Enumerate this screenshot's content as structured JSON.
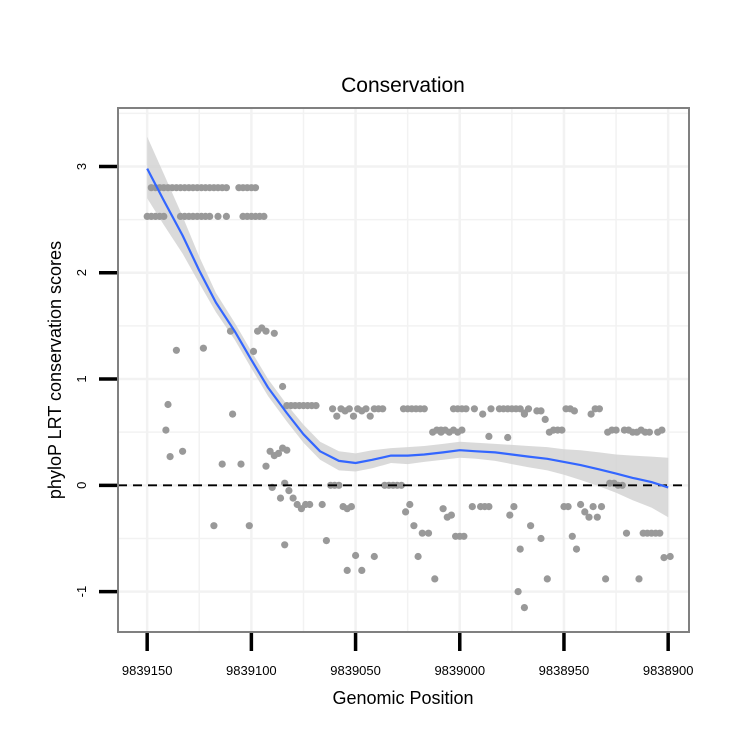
{
  "chart_data": {
    "type": "scatter",
    "title": "Conservation",
    "xlabel": "Genomic Position",
    "ylabel": "phyloP LRT conservation scores",
    "x_reversed": true,
    "xlim": [
      9839164,
      9838890
    ],
    "ylim": [
      -1.38,
      3.55
    ],
    "xticks": [
      9839150,
      9839100,
      9839050,
      9839000,
      9838950,
      9838900
    ],
    "xtick_labels": [
      "9839150",
      "9839100",
      "9839050",
      "9839000",
      "9838950",
      "9838900"
    ],
    "yticks": [
      -1,
      0,
      1,
      2,
      3
    ],
    "ytick_labels": [
      "-1",
      "0",
      "1",
      "2",
      "3"
    ],
    "grid": true,
    "reference_line": {
      "y": 0,
      "style": "dashed"
    },
    "colors": {
      "points": "#999999",
      "smooth_line": "#3366ff",
      "confidence_band": "#d4d4d4",
      "grid": "#f2f2f2",
      "border": "#808080",
      "reference_line": "#000000"
    },
    "points": [
      [
        9839148,
        2.8
      ],
      [
        9839146,
        2.8
      ],
      [
        9839144,
        2.8
      ],
      [
        9839142,
        2.8
      ],
      [
        9839140,
        2.8
      ],
      [
        9839138,
        2.8
      ],
      [
        9839136,
        2.8
      ],
      [
        9839134,
        2.8
      ],
      [
        9839132,
        2.8
      ],
      [
        9839130,
        2.8
      ],
      [
        9839128,
        2.8
      ],
      [
        9839126,
        2.8
      ],
      [
        9839124,
        2.8
      ],
      [
        9839122,
        2.8
      ],
      [
        9839120,
        2.8
      ],
      [
        9839118,
        2.8
      ],
      [
        9839116,
        2.8
      ],
      [
        9839114,
        2.8
      ],
      [
        9839112,
        2.8
      ],
      [
        9839106,
        2.8
      ],
      [
        9839104,
        2.8
      ],
      [
        9839102,
        2.8
      ],
      [
        9839100,
        2.8
      ],
      [
        9839098,
        2.8
      ],
      [
        9839150,
        2.53
      ],
      [
        9839148,
        2.53
      ],
      [
        9839146,
        2.53
      ],
      [
        9839144,
        2.53
      ],
      [
        9839142,
        2.53
      ],
      [
        9839134,
        2.53
      ],
      [
        9839132,
        2.53
      ],
      [
        9839130,
        2.53
      ],
      [
        9839128,
        2.53
      ],
      [
        9839126,
        2.53
      ],
      [
        9839124,
        2.53
      ],
      [
        9839122,
        2.53
      ],
      [
        9839120,
        2.53
      ],
      [
        9839116,
        2.53
      ],
      [
        9839112,
        2.53
      ],
      [
        9839104,
        2.53
      ],
      [
        9839102,
        2.53
      ],
      [
        9839100,
        2.53
      ],
      [
        9839098,
        2.53
      ],
      [
        9839096,
        2.53
      ],
      [
        9839094,
        2.53
      ],
      [
        9839136,
        1.27
      ],
      [
        9839123,
        1.29
      ],
      [
        9839110,
        1.45
      ],
      [
        9839099,
        1.26
      ],
      [
        9839097,
        1.45
      ],
      [
        9839095,
        1.48
      ],
      [
        9839093,
        1.45
      ],
      [
        9839089,
        1.43
      ],
      [
        9839140,
        0.76
      ],
      [
        9839141,
        0.52
      ],
      [
        9839139,
        0.27
      ],
      [
        9839133,
        0.32
      ],
      [
        9839109,
        0.67
      ],
      [
        9839114,
        0.2
      ],
      [
        9839085,
        0.93
      ],
      [
        9839083,
        0.75
      ],
      [
        9839081,
        0.75
      ],
      [
        9839079,
        0.75
      ],
      [
        9839077,
        0.75
      ],
      [
        9839075,
        0.75
      ],
      [
        9839073,
        0.75
      ],
      [
        9839071,
        0.75
      ],
      [
        9839069,
        0.75
      ],
      [
        9839061,
        0.72
      ],
      [
        9839059,
        0.65
      ],
      [
        9839057,
        0.72
      ],
      [
        9839055,
        0.7
      ],
      [
        9839053,
        0.72
      ],
      [
        9839051,
        0.65
      ],
      [
        9839049,
        0.72
      ],
      [
        9839047,
        0.7
      ],
      [
        9839045,
        0.72
      ],
      [
        9839043,
        0.65
      ],
      [
        9839041,
        0.72
      ],
      [
        9839039,
        0.72
      ],
      [
        9839037,
        0.72
      ],
      [
        9839027,
        0.72
      ],
      [
        9839025,
        0.72
      ],
      [
        9839023,
        0.72
      ],
      [
        9839021,
        0.72
      ],
      [
        9839019,
        0.72
      ],
      [
        9839017,
        0.72
      ],
      [
        9839013,
        0.5
      ],
      [
        9839011,
        0.52
      ],
      [
        9839009,
        0.52
      ],
      [
        9839007,
        0.52
      ],
      [
        9839005,
        0.5
      ],
      [
        9839003,
        0.52
      ],
      [
        9839001,
        0.5
      ],
      [
        9838999,
        0.52
      ],
      [
        9839003,
        0.72
      ],
      [
        9839001,
        0.72
      ],
      [
        9838999,
        0.72
      ],
      [
        9838997,
        0.72
      ],
      [
        9838993,
        0.72
      ],
      [
        9838989,
        0.67
      ],
      [
        9838985,
        0.72
      ],
      [
        9838981,
        0.72
      ],
      [
        9838979,
        0.72
      ],
      [
        9838977,
        0.72
      ],
      [
        9838975,
        0.72
      ],
      [
        9838973,
        0.72
      ],
      [
        9838971,
        0.72
      ],
      [
        9838969,
        0.67
      ],
      [
        9838967,
        0.72
      ],
      [
        9838963,
        0.7
      ],
      [
        9838961,
        0.7
      ],
      [
        9838959,
        0.62
      ],
      [
        9838957,
        0.5
      ],
      [
        9838955,
        0.52
      ],
      [
        9838953,
        0.52
      ],
      [
        9838951,
        0.52
      ],
      [
        9838949,
        0.72
      ],
      [
        9838947,
        0.72
      ],
      [
        9838945,
        0.7
      ],
      [
        9838937,
        0.67
      ],
      [
        9838935,
        0.72
      ],
      [
        9838933,
        0.72
      ],
      [
        9838929,
        0.5
      ],
      [
        9838927,
        0.52
      ],
      [
        9838925,
        0.52
      ],
      [
        9838921,
        0.52
      ],
      [
        9838919,
        0.52
      ],
      [
        9838917,
        0.5
      ],
      [
        9838915,
        0.5
      ],
      [
        9838913,
        0.52
      ],
      [
        9838911,
        0.5
      ],
      [
        9838909,
        0.5
      ],
      [
        9838905,
        0.5
      ],
      [
        9838903,
        0.52
      ],
      [
        9839009,
        0.5
      ],
      [
        9838986,
        0.46
      ],
      [
        9838977,
        0.45
      ],
      [
        9838969,
        0.68
      ],
      [
        9839105,
        0.2
      ],
      [
        9839091,
        0.32
      ],
      [
        9839093,
        0.18
      ],
      [
        9839089,
        0.28
      ],
      [
        9839087,
        0.3
      ],
      [
        9839085,
        0.35
      ],
      [
        9839083,
        0.33
      ],
      [
        9839090,
        -0.02
      ],
      [
        9839086,
        -0.12
      ],
      [
        9839084,
        0.02
      ],
      [
        9839082,
        -0.05
      ],
      [
        9839080,
        -0.12
      ],
      [
        9839078,
        -0.18
      ],
      [
        9839076,
        -0.22
      ],
      [
        9839074,
        -0.18
      ],
      [
        9839072,
        -0.18
      ],
      [
        9839118,
        -0.38
      ],
      [
        9839101,
        -0.38
      ],
      [
        9839084,
        -0.56
      ],
      [
        9839064,
        -0.52
      ],
      [
        9839066,
        -0.18
      ],
      [
        9839062,
        0.0
      ],
      [
        9839060,
        0.0
      ],
      [
        9839058,
        0.0
      ],
      [
        9839056,
        -0.2
      ],
      [
        9839054,
        -0.22
      ],
      [
        9839052,
        -0.2
      ],
      [
        9839050,
        -0.66
      ],
      [
        9839047,
        -0.8
      ],
      [
        9839054,
        -0.8
      ],
      [
        9839041,
        -0.67
      ],
      [
        9839036,
        0.0
      ],
      [
        9839034,
        0.0
      ],
      [
        9839032,
        0.0
      ],
      [
        9839030,
        0.0
      ],
      [
        9839028,
        0.0
      ],
      [
        9839026,
        -0.25
      ],
      [
        9839024,
        -0.18
      ],
      [
        9839022,
        -0.38
      ],
      [
        9839020,
        -0.67
      ],
      [
        9839018,
        -0.45
      ],
      [
        9839015,
        -0.45
      ],
      [
        9839012,
        -0.88
      ],
      [
        9839008,
        -0.22
      ],
      [
        9839006,
        -0.3
      ],
      [
        9839004,
        -0.28
      ],
      [
        9839002,
        -0.48
      ],
      [
        9839000,
        -0.48
      ],
      [
        9838998,
        -0.48
      ],
      [
        9838994,
        -0.2
      ],
      [
        9838990,
        -0.2
      ],
      [
        9838988,
        -0.2
      ],
      [
        9838986,
        -0.2
      ],
      [
        9838976,
        -0.28
      ],
      [
        9838974,
        -0.2
      ],
      [
        9838972,
        -1.0
      ],
      [
        9838971,
        -0.6
      ],
      [
        9838969,
        -1.15
      ],
      [
        9838966,
        -0.38
      ],
      [
        9838961,
        -0.5
      ],
      [
        9838958,
        -0.88
      ],
      [
        9838950,
        -0.2
      ],
      [
        9838948,
        -0.2
      ],
      [
        9838946,
        -0.48
      ],
      [
        9838944,
        -0.6
      ],
      [
        9838942,
        -0.18
      ],
      [
        9838940,
        -0.25
      ],
      [
        9838938,
        -0.3
      ],
      [
        9838936,
        -0.2
      ],
      [
        9838934,
        -0.3
      ],
      [
        9838932,
        -0.2
      ],
      [
        9838930,
        -0.88
      ],
      [
        9838928,
        0.02
      ],
      [
        9838926,
        0.02
      ],
      [
        9838924,
        0.0
      ],
      [
        9838922,
        0.0
      ],
      [
        9838920,
        -0.45
      ],
      [
        9838914,
        -0.88
      ],
      [
        9838912,
        -0.45
      ],
      [
        9838910,
        -0.45
      ],
      [
        9838908,
        -0.45
      ],
      [
        9838906,
        -0.45
      ],
      [
        9838904,
        -0.45
      ],
      [
        9838902,
        -0.68
      ],
      [
        9838899,
        -0.67
      ]
    ],
    "smooth": {
      "x": [
        9839150,
        9839142,
        9839133,
        9839125,
        9839117,
        9839108,
        9839100,
        9839092,
        9839083,
        9839075,
        9839067,
        9839058,
        9839050,
        9839042,
        9839033,
        9839025,
        9839017,
        9839008,
        9839000,
        9838992,
        9838983,
        9838975,
        9838967,
        9838958,
        9838950,
        9838942,
        9838933,
        9838925,
        9838917,
        9838908,
        9838900
      ],
      "y": [
        2.98,
        2.68,
        2.35,
        2.02,
        1.72,
        1.45,
        1.18,
        0.92,
        0.68,
        0.48,
        0.32,
        0.23,
        0.21,
        0.24,
        0.28,
        0.28,
        0.29,
        0.31,
        0.33,
        0.32,
        0.31,
        0.29,
        0.27,
        0.25,
        0.22,
        0.19,
        0.15,
        0.11,
        0.07,
        0.03,
        -0.02
      ],
      "lower": [
        2.7,
        2.45,
        2.18,
        1.9,
        1.63,
        1.37,
        1.1,
        0.84,
        0.6,
        0.4,
        0.24,
        0.14,
        0.13,
        0.16,
        0.21,
        0.2,
        0.22,
        0.24,
        0.26,
        0.25,
        0.23,
        0.2,
        0.17,
        0.14,
        0.1,
        0.05,
        -0.01,
        -0.07,
        -0.14,
        -0.21,
        -0.3
      ],
      "upper": [
        3.28,
        2.93,
        2.53,
        2.15,
        1.81,
        1.53,
        1.26,
        1.0,
        0.76,
        0.57,
        0.41,
        0.32,
        0.3,
        0.33,
        0.35,
        0.36,
        0.37,
        0.39,
        0.41,
        0.4,
        0.39,
        0.38,
        0.37,
        0.36,
        0.34,
        0.33,
        0.31,
        0.29,
        0.28,
        0.27,
        0.26
      ]
    }
  }
}
